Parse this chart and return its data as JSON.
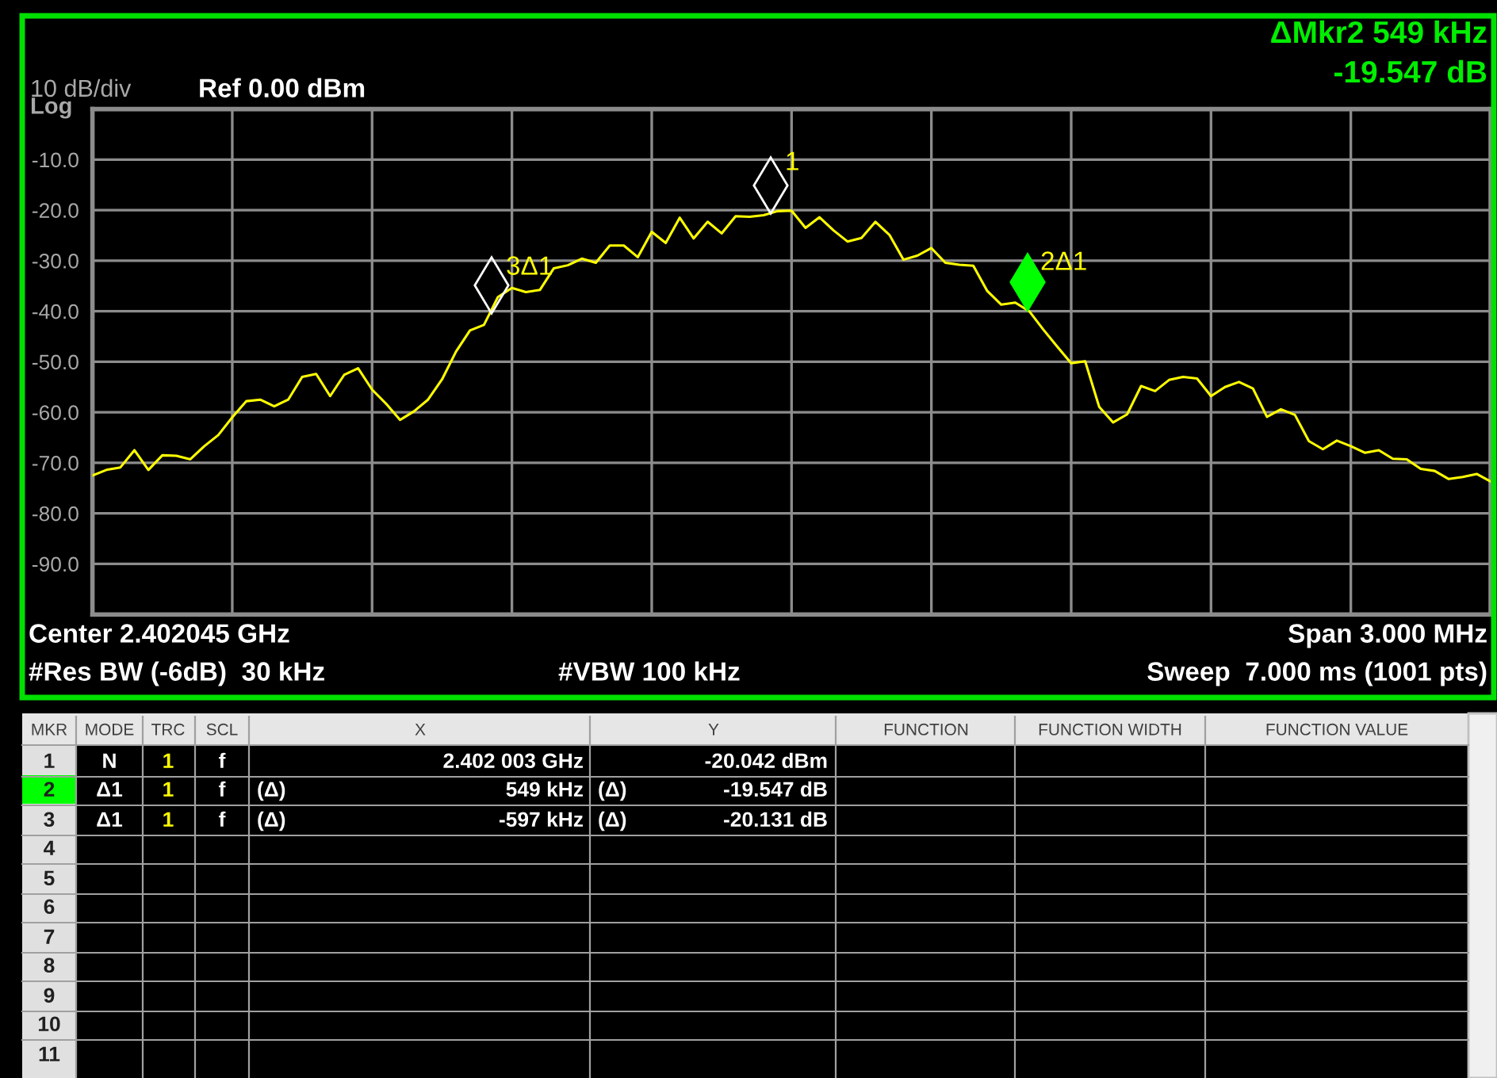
{
  "chart_data": {
    "type": "line",
    "categories": [
      null,
      null,
      null,
      null,
      null,
      null,
      null,
      null,
      null,
      null,
      null,
      null,
      null,
      null,
      null,
      null,
      null,
      null,
      null,
      null,
      null,
      null,
      null,
      null,
      null,
      null,
      null,
      null,
      null,
      null,
      null,
      null,
      null,
      null,
      null,
      null,
      null,
      null,
      null,
      null,
      null,
      null,
      null,
      null,
      null,
      null,
      null,
      null,
      null,
      null,
      null,
      null,
      null,
      null,
      null,
      null,
      null,
      null,
      null,
      null,
      null,
      null,
      null,
      null,
      null,
      null,
      null,
      null,
      null,
      null,
      null,
      null,
      null,
      null,
      null,
      null,
      null,
      null,
      null,
      null,
      null,
      null,
      null,
      null,
      null,
      null,
      null,
      null,
      null,
      null,
      null,
      null,
      null,
      null,
      null,
      null,
      null,
      null,
      null,
      null,
      null
    ],
    "ylim": [
      -100,
      0
    ],
    "yticks": [
      {
        "value": -90,
        "label": "-90.0"
      },
      {
        "value": -80,
        "label": "-80.0"
      },
      {
        "value": -70,
        "label": "-70.0"
      },
      {
        "value": -60,
        "label": "-60.0"
      },
      {
        "value": -50,
        "label": "-50.0"
      },
      {
        "value": -40,
        "label": "-40.0"
      },
      {
        "value": -30,
        "label": "-30.0"
      },
      {
        "value": -20,
        "label": "-20.0"
      },
      {
        "value": -10,
        "label": "-10.0"
      }
    ],
    "grid": true,
    "series": [
      {
        "color": "#ffff00",
        "marker": "none",
        "line_style": "solid",
        "values": [
          -72.5,
          -71.4,
          -70.9,
          -67.5,
          -71.4,
          -68.5,
          -68.6,
          -69.3,
          -66.7,
          -64.5,
          -61.0,
          -57.8,
          -57.5,
          -58.8,
          -57.5,
          -53.0,
          -52.4,
          -56.8,
          -52.6,
          -51.3,
          -55.5,
          -58.3,
          -61.5,
          -59.8,
          -57.5,
          -53.5,
          -48.0,
          -43.8,
          -42.7,
          -37.2,
          -35.4,
          -36.2,
          -35.8,
          -31.5,
          -30.9,
          -29.6,
          -30.4,
          -27.0,
          -27.0,
          -29.3,
          -24.3,
          -26.5,
          -21.5,
          -25.6,
          -22.3,
          -24.6,
          -21.2,
          -21.3,
          -21.0,
          -20.2,
          -20.1,
          -23.5,
          -21.4,
          -24.0,
          -26.2,
          -25.5,
          -22.3,
          -24.9,
          -29.8,
          -29.0,
          -27.5,
          -30.4,
          -30.8,
          -31.0,
          -36.0,
          -38.7,
          -38.3,
          -40.0,
          -43.6,
          -47.0,
          -50.3,
          -49.9,
          -58.9,
          -62.0,
          -60.4,
          -54.8,
          -55.8,
          -53.6,
          -53.0,
          -53.3,
          -56.8,
          -55.0,
          -54.0,
          -55.3,
          -60.9,
          -59.4,
          -60.5,
          -65.7,
          -67.3,
          -65.6,
          -66.7,
          -68.0,
          -67.5,
          -69.2,
          -69.3,
          -71.2,
          -71.6,
          -73.2,
          -72.8,
          -72.2,
          -73.7
        ]
      }
    ],
    "annotations": [
      "10 dB/div",
      "Log",
      "Ref 0.00 dBm",
      "ΔMkr2 549 kHz",
      "-19.547 dB",
      "Center 2.402045 GHz",
      "Span 3.000 MHz",
      "#Res BW (-6dB)  30 kHz",
      "#VBW 100 kHz",
      "Sweep  7.000 ms (1001 pts)",
      "1",
      "2Δ1",
      "3Δ1",
      "MKR",
      "MODE",
      "TRC",
      "SCL",
      "X",
      "Y",
      "FUNCTION",
      "FUNCTION WIDTH",
      "FUNCTION VALUE",
      "1",
      "N",
      "1",
      "f",
      "2.402 003 GHz",
      "-20.042 dBm",
      "2",
      "Δ1",
      "1",
      "f",
      "(Δ)",
      "549 kHz",
      "(Δ)",
      "-19.547 dB",
      "3",
      "Δ1",
      "1",
      "f",
      "(Δ)",
      "-597 kHz",
      "(Δ)",
      "-20.131 dB",
      "4",
      "5",
      "6",
      "7",
      "8",
      "9",
      "10",
      "11"
    ]
  }
}
